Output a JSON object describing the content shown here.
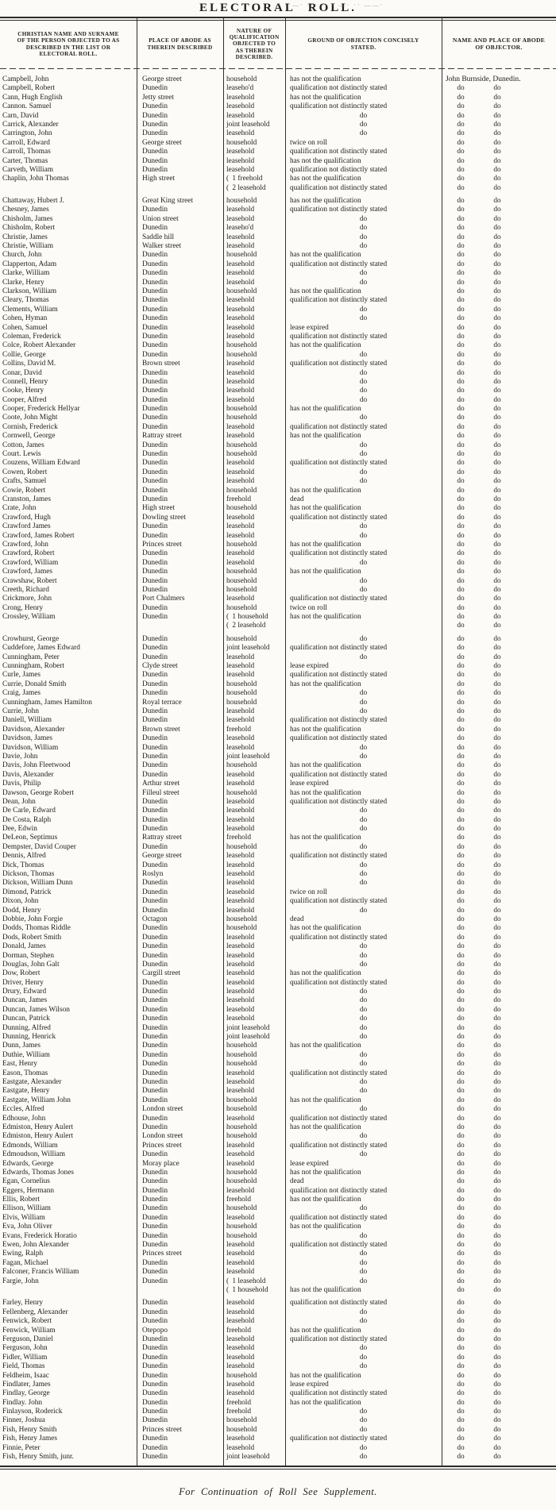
{
  "page": {
    "title": "ELECTORAL ROLL.",
    "footer": "For Continuation of Roll See Supplement.",
    "artifact_marks": "·  ··—·   ···  ··   · —·  ·· ——·"
  },
  "table": {
    "columns": [
      {
        "lines": [
          "CHRISTIAN NAME AND SURNAME",
          "OF THE PERSON OBJECTED TO AS",
          "DESCRIBED IN THE LIST OR",
          "ELECTORAL ROLL."
        ]
      },
      {
        "lines": [
          "PLACE OF ABODE AS",
          "THEREIN DESCRIBED"
        ]
      },
      {
        "lines": [
          "NATURE OF",
          "QUALIFICATION",
          "OBJECTED TO",
          "AS THEREIN",
          "DESCRIBED."
        ]
      },
      {
        "lines": [
          "GROUND OF OBJECTION CONCISELY",
          "STATED."
        ]
      },
      {
        "lines": [
          "NAME AND PLACE OF ABODE",
          "OF OBJECTOR."
        ]
      }
    ],
    "objector_name": "John Burnside, Dunedin.",
    "ditto": "do",
    "brace": "(",
    "rows": [
      [
        "Campbell, John",
        "George street",
        "household",
        "has not the qualification",
        {
          "first": 1
        }
      ],
      [
        "Campbell, Robert",
        "Dunedin",
        "leaseho'd",
        "qualification not distinctly stated"
      ],
      [
        "Cann, Hugh English",
        "Jetty street",
        "leasehold",
        "has not the qualification"
      ],
      [
        "Cannon. Samuel",
        "Dunedin",
        "leasehold",
        "qualification not distinctly stated"
      ],
      [
        "Carn, David",
        "Dunedin",
        "leasehold",
        "do"
      ],
      [
        "Carrick, Alexander",
        "Dunedin",
        "joint leasehold",
        "do"
      ],
      [
        "Carrington, John",
        "Dunedin",
        "leasehold",
        "do"
      ],
      [
        "Carroll, Edward",
        "George street",
        "household",
        "twice on roll"
      ],
      [
        "Carroll, Thomas",
        "Dunedin",
        "leasehold",
        "qualification not distinctly stated"
      ],
      [
        "Carter, Thomas",
        "Dunedin",
        "leasehold",
        "has not the qualification"
      ],
      [
        "Carveth, William",
        "Dunedin",
        "leasehold",
        "qualification not distinctly stated"
      ],
      [
        "Chaplin, John Thomas",
        "High street",
        "1 freehold",
        "has not the qualification",
        {
          "q2": "2 leasehold",
          "g2": "qualification not distinctly stated"
        }
      ],
      [
        "Chattaway, Hubert J.",
        "Great King street",
        "household",
        "has not the qualification"
      ],
      [
        "Chesney, James",
        "Dunedin",
        "leasehold",
        "qualification not distinctly stated"
      ],
      [
        "Chisholm, James",
        "Union street",
        "leasehold",
        "do"
      ],
      [
        "Chisholm, Robert",
        "Dunedin",
        "leaseho'd",
        "do"
      ],
      [
        "Christie, James",
        "Saddle hill",
        "leasehold",
        "do"
      ],
      [
        "Christie, William",
        "Walker street",
        "leasehold",
        "do"
      ],
      [
        "Church, John",
        "Dunedin",
        "household",
        "has not the qualification"
      ],
      [
        "Clapperton, Adam",
        "Dunedin",
        "leasehold",
        "qualification not distinctly stated"
      ],
      [
        "Clarke, William",
        "Dunedin",
        "leasehold",
        "do"
      ],
      [
        "Clarke, Henry",
        "Dunedin",
        "leasehold",
        "do"
      ],
      [
        "Clarkson, William",
        "Dunedin",
        "household",
        "has not the qualification"
      ],
      [
        "Cleary, Thomas",
        "Dunedin",
        "leasehold",
        "qualification not distinctly stated"
      ],
      [
        "Clements, William",
        "Dunedin",
        "leasehold",
        "do"
      ],
      [
        "Cohen, Hyman",
        "Dunedin",
        "leasehold",
        "do"
      ],
      [
        "Cohen, Samuel",
        "Dunedin",
        "leasehold",
        "lease expired"
      ],
      [
        "Coleman, Frederick",
        "Dunedin",
        "leasehold",
        "qualification not distinctly stated"
      ],
      [
        "Colce, Robert Alexander",
        "Dunedin",
        "household",
        "has not the qualification"
      ],
      [
        "Collie, George",
        "Dunedin",
        "household",
        "do"
      ],
      [
        "Collins, David M.",
        "Brown street",
        "leasehold",
        "qualification not distinctly stated"
      ],
      [
        "Conar, David",
        "Dunedin",
        "leasehold",
        "do"
      ],
      [
        "Connell, Henry",
        "Dunedin",
        "leasehold",
        "do"
      ],
      [
        "Cooke, Henry",
        "Dunedin",
        "leasehold",
        "do"
      ],
      [
        "Cooper, Alfred",
        "Dunedin",
        "leasehold",
        "do"
      ],
      [
        "Cooper, Frederick Hellyar",
        "Dunedin",
        "household",
        "has not the qualification"
      ],
      [
        "Coote, John Might",
        "Dunedin",
        "household",
        "do"
      ],
      [
        "Cornish, Frederick",
        "Dunedin",
        "leasehold",
        "qualification not distinctly stated"
      ],
      [
        "Cornwell, George",
        "Rattray street",
        "leasehold",
        "has not the qualification"
      ],
      [
        "Cotton, James",
        "Dunedin",
        "household",
        "do"
      ],
      [
        "Court. Lewis",
        "Dunedin",
        "household",
        "do"
      ],
      [
        "Couzens, William Edward",
        "Dunedin",
        "leasehold",
        "qualification not distinctly stated"
      ],
      [
        "Cowen, Robert",
        "Dunedin",
        "leasehold",
        "do"
      ],
      [
        "Crafts, Samuel",
        "Dunedin",
        "leasehold",
        "do"
      ],
      [
        "Cowie, Robert",
        "Dunedin",
        "household",
        "has not the qualification"
      ],
      [
        "Cranston, James",
        "Dunedin",
        "freehold",
        "dead"
      ],
      [
        "Crate, John",
        "High street",
        "household",
        "has not the qualification"
      ],
      [
        "Crawford, Hugh",
        "Dowling street",
        "leasehold",
        "qualification not distinctly stated"
      ],
      [
        "Crawford James",
        "Dunedin",
        "leasehold",
        "do"
      ],
      [
        "Crawford, James Robert",
        "Dunedin",
        "leasehold",
        "do"
      ],
      [
        "Crawford, John",
        "Princes street",
        "household",
        "has not the qualification"
      ],
      [
        "Crawford, Robert",
        "Dunedin",
        "leasehold",
        "qualification not distinctly stated"
      ],
      [
        "Crawford, William",
        "Dunedin",
        "leasehold",
        "do"
      ],
      [
        "Crawford, James",
        "Dunedin",
        "household",
        "has not the qualification"
      ],
      [
        "Crawshaw, Robert",
        "Dunedin",
        "household",
        "do"
      ],
      [
        "Creeth, Richard",
        "Dunedin",
        "household",
        "do"
      ],
      [
        "Crickmore, John",
        "Port Chalmers",
        "leasehold",
        "qualification not distinctly stated"
      ],
      [
        "Crong, Henry",
        "Dunedin",
        "household",
        "twice on roll"
      ],
      [
        "Crossley, William",
        "Dunedin",
        "1 household",
        "has not the qualification",
        {
          "q2": "2 leasehold",
          "g2": ""
        }
      ],
      [
        "Crowhurst, George",
        "Dunedin",
        "household",
        "do"
      ],
      [
        "Cuddefore, James Edward",
        "Dunedin",
        "joint leasehold",
        "qualification not distinctly stated"
      ],
      [
        "Cunningham, Peter",
        "Dunedin",
        "leasehold",
        "do"
      ],
      [
        "Cunningham, Robert",
        "Clyde street",
        "leasehold",
        "lease expired"
      ],
      [
        "Curle, James",
        "Dunedin",
        "leasehold",
        "qualification not distinctly stated"
      ],
      [
        "Currie, Donald Smith",
        "Dunedin",
        "household",
        "has not the qualification"
      ],
      [
        "Craig, James",
        "Dunedin",
        "household",
        "do"
      ],
      [
        "Cunningham, James Hamilton",
        "Royal terrace",
        "household",
        "do"
      ],
      [
        "Currie, John",
        "Dunedin",
        "leasehold",
        "do"
      ],
      [
        "Daniell, William",
        "Dunedin",
        "leasehold",
        "qualification not distinctly stated"
      ],
      [
        "Davidson, Alexander",
        "Brown street",
        "freehold",
        "has not the qualification"
      ],
      [
        "Davidson, James",
        "Dunedin",
        "leasehold",
        "qualification not distinctly stated"
      ],
      [
        "Davidson, William",
        "Dunedin",
        "leasehold",
        "do"
      ],
      [
        "Davie, John",
        "Dunedin",
        "joint leasehold",
        "do"
      ],
      [
        "Davis, John Fleetwood",
        "Dunedin",
        "household",
        "has not the qualification"
      ],
      [
        "Davis, Alexander",
        "Dunedin",
        "leasehold",
        "qualification not distinctly stated"
      ],
      [
        "Davis, Philip",
        "Arthur street",
        "leasehold",
        "lease expired"
      ],
      [
        "Dawson, George Robert",
        "Filleul street",
        "household",
        "has not the qualification"
      ],
      [
        "Dean, John",
        "Dunedin",
        "leasehold",
        "qualification not distinctly stated"
      ],
      [
        "De Carle, Edward",
        "Dunedin",
        "leasehold",
        "do"
      ],
      [
        "De Costa, Ralph",
        "Dunedin",
        "leasehold",
        "do"
      ],
      [
        "Dee, Edwin",
        "Dunedin",
        "leasehold",
        "do"
      ],
      [
        "DeLeon, Septimus",
        "Rattray street",
        "freehold",
        "has not the qualification"
      ],
      [
        "Dempster, David Couper",
        "Dunedin",
        "household",
        "do"
      ],
      [
        "Dennis, Alfred",
        "George street",
        "leasehold",
        "qualification not distinctly stated"
      ],
      [
        "Dick, Thomas",
        "Dunedin",
        "leasehold",
        "do"
      ],
      [
        "Dickson, Thomas",
        "Roslyn",
        "leasehold",
        "do"
      ],
      [
        "Dickson, William Dunn",
        "Dunedin",
        "leasehold",
        "do"
      ],
      [
        "Dimond, Patrick",
        "Dunedin",
        "leasehold",
        "twice on roll"
      ],
      [
        "Dixon, John",
        "Dunedin",
        "leasehold",
        "qualification not distinctly stated"
      ],
      [
        "Dodd, Henry",
        "Dunedin",
        "leasehold",
        "do"
      ],
      [
        "Dobbie, John Forgie",
        "Octagon",
        "household",
        "dead"
      ],
      [
        "Dodds, Thomas Riddle",
        "Dunedin",
        "household",
        "has not the qualification"
      ],
      [
        "Dods, Robert Smith",
        "Dunedin",
        "leasehold",
        "qualification not distinctly stated"
      ],
      [
        "Donald, James",
        "Dunedin",
        "leasehold",
        "do"
      ],
      [
        "Dorman, Stephen",
        "Dunedin",
        "leasehold",
        "do"
      ],
      [
        "Douglas, John Galt",
        "Dunedin",
        "leasehold",
        "do"
      ],
      [
        "Dow, Robert",
        "Cargill street",
        "leasehold",
        "has not the qualification"
      ],
      [
        "Driver, Henry",
        "Dunedin",
        "leasehold",
        "qualification not distinctly stated"
      ],
      [
        "Drury, Edward",
        "Dunedin",
        "leasehold",
        "do"
      ],
      [
        "Duncan, James",
        "Dunedin",
        "leasehold",
        "do"
      ],
      [
        "Duncan, James Wilson",
        "Dunedin",
        "leasehold",
        "do"
      ],
      [
        "Duncan, Patrick",
        "Dunedin",
        "leasehold",
        "do"
      ],
      [
        "Dunning, Alfred",
        "Dunedin",
        "joint leasehold",
        "do"
      ],
      [
        "Dunning, Henrick",
        "Dunedin",
        "joint leasehold",
        "do"
      ],
      [
        "Dunn, James",
        "Dunedin",
        "household",
        "has not the qualification"
      ],
      [
        "Duthie, William",
        "Dunedin",
        "household",
        "do"
      ],
      [
        "East, Henry",
        "Dunedin",
        "household",
        "do"
      ],
      [
        "Eason, Thomas",
        "Dunedin",
        "leasehold",
        "qualification not distinctly stated"
      ],
      [
        "Eastgate, Alexander",
        "Dunedin",
        "leasehold",
        "do"
      ],
      [
        "Eastgate, Henry",
        "Dunedin",
        "leasehold",
        "do"
      ],
      [
        "Eastgate, William John",
        "Dunedin",
        "household",
        "has not the qualification"
      ],
      [
        "Eccles, Alfred",
        "London street",
        "household",
        "do"
      ],
      [
        "Edhouse, John",
        "Dunedin",
        "leasehold",
        "qualification not distinctly stated"
      ],
      [
        "Edmiston, Henry Aulert",
        "Dunedin",
        "household",
        "has not the qualification"
      ],
      [
        "Edmiston, Henry Aulert",
        "London street",
        "household",
        "do"
      ],
      [
        "Edmonds, William",
        "Princes street",
        "leasehold",
        "qualification not distinctly stated"
      ],
      [
        "Edmoudson, William",
        "Dunedin",
        "leasehold",
        "do"
      ],
      [
        "Edwards, George",
        "Moray place",
        "leasehold",
        "lease expired"
      ],
      [
        "Edwards, Thomas Jones",
        "Dunedin",
        "household",
        "has not the qualification"
      ],
      [
        "Egan, Cornelius",
        "Dunedin",
        "household",
        "dead"
      ],
      [
        "Eggers, Hermann",
        "Dunedin",
        "leasehold",
        "qualification not distinctly stated"
      ],
      [
        "Ellis, Robert",
        "Dunedin",
        "freehold",
        "has not the qualification"
      ],
      [
        "Ellison, William",
        "Dunedin",
        "household",
        "do"
      ],
      [
        "Elvis, William",
        "Dunedin",
        "leasehold",
        "qualification not distinctly stated"
      ],
      [
        "Eva, John Oliver",
        "Dunedin",
        "household",
        "has not the qualification"
      ],
      [
        "Evans, Frederick Horatio",
        "Dunedin",
        "household",
        "do"
      ],
      [
        "Ewen, John Alexander",
        "Dunedin",
        "leasehold",
        "qualification not distinctly stated"
      ],
      [
        "Ewing, Ralph",
        "Princes street",
        "leasehold",
        "do"
      ],
      [
        "Fagan, Michael",
        "Dunedin",
        "leasehold",
        "do"
      ],
      [
        "Falconer, Francis William",
        "Dunedin",
        "leasehold",
        "do"
      ],
      [
        "Fargie, John",
        "Dunedin",
        "1 leasehold",
        "do",
        {
          "q2": "1 household",
          "g2": "has not the qualification"
        }
      ],
      [
        "Farley, Henry",
        "Dunedin",
        "leasehold",
        "qualification not distinctly stated"
      ],
      [
        "Fellenberg, Alexander",
        "Dunedin",
        "leasehold",
        "do"
      ],
      [
        "Fenwick, Robert",
        "Dunedin",
        "leasehold",
        "do"
      ],
      [
        "Fenwick, William",
        "Otepopo",
        "freehold",
        "has not the qualification"
      ],
      [
        "Ferguson, Daniel",
        "Dunedin",
        "leasehold",
        "qualification not distinctly stated"
      ],
      [
        "Ferguson, John",
        "Dunedin",
        "leasehold",
        "do"
      ],
      [
        "Fidler, William",
        "Dunedin",
        "leasehold",
        "do"
      ],
      [
        "Field, Thomas",
        "Dunedin",
        "leasehold",
        "do"
      ],
      [
        "Feldheim, Isaac",
        "Dunedin",
        "household",
        "has not the qualification"
      ],
      [
        "Findlater, James",
        "Dunedin",
        "leasehold",
        "lease expired"
      ],
      [
        "Findlay, George",
        "Dunedin",
        "leasehold",
        "qualification not distinctly stated"
      ],
      [
        "Findlay. John",
        "Dunedin",
        "freehold",
        "has not the qualification"
      ],
      [
        "Finlayson, Roderick",
        "Dunedin",
        "freehold",
        "do"
      ],
      [
        "Finner, Joshua",
        "Dunedin",
        "household",
        "do"
      ],
      [
        "Fish, Henry Smith",
        "Princes street",
        "household",
        "do"
      ],
      [
        "Fish, Henry James",
        "Dunedin",
        "leasehold",
        "qualification not distinctly stated"
      ],
      [
        "Finnie, Peter",
        "Dunedin",
        "leasehold",
        "do"
      ],
      [
        "Fish, Henry Smith, junr.",
        "Dunedin",
        "joint leasehold",
        "do"
      ]
    ]
  }
}
